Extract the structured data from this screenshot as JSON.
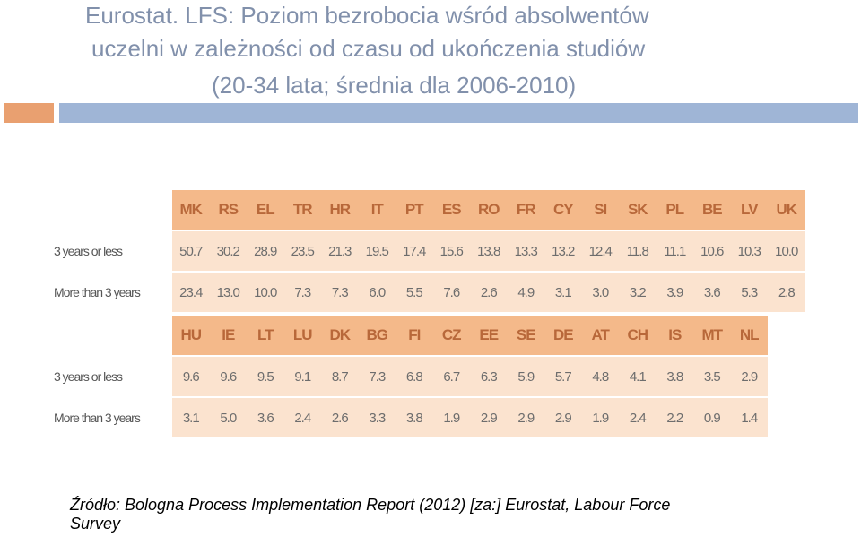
{
  "header": {
    "title_lines": [
      "Eurostat. LFS: Poziom bezrobocia wśród absolwentów",
      "uczelni w zależności od czasu od ukończenia studiów",
      "(20-34 lata; średnia dla 2006-2010)"
    ]
  },
  "table": {
    "blocks": [
      {
        "columns": [
          "MK",
          "RS",
          "EL",
          "TR",
          "HR",
          "IT",
          "PT",
          "ES",
          "RO",
          "FR",
          "CY",
          "SI",
          "SK",
          "PL",
          "BE",
          "LV",
          "UK"
        ],
        "rows": [
          {
            "label": "3 years or less",
            "values": [
              "50.7",
              "30.2",
              "28.9",
              "23.5",
              "21.3",
              "19.5",
              "17.4",
              "15.6",
              "13.8",
              "13.3",
              "13.2",
              "12.4",
              "11.8",
              "11.1",
              "10.6",
              "10.3",
              "10.0"
            ]
          },
          {
            "label": "More than 3 years",
            "values": [
              "23.4",
              "13.0",
              "10.0",
              "7.3",
              "7.3",
              "6.0",
              "5.5",
              "7.6",
              "2.6",
              "4.9",
              "3.1",
              "3.0",
              "3.2",
              "3.9",
              "3.6",
              "5.3",
              "2.8"
            ]
          }
        ]
      },
      {
        "columns": [
          "HU",
          "IE",
          "LT",
          "LU",
          "DK",
          "BG",
          "FI",
          "CZ",
          "EE",
          "SE",
          "DE",
          "AT",
          "CH",
          "IS",
          "MT",
          "NL"
        ],
        "rows": [
          {
            "label": "3 years or less",
            "values": [
              "9.6",
              "9.6",
              "9.5",
              "9.1",
              "8.7",
              "7.3",
              "6.8",
              "6.7",
              "6.3",
              "5.9",
              "5.7",
              "4.8",
              "4.1",
              "3.8",
              "3.5",
              "2.9"
            ]
          },
          {
            "label": "More than 3 years",
            "values": [
              "3.1",
              "5.0",
              "3.6",
              "2.4",
              "2.6",
              "3.3",
              "3.8",
              "1.9",
              "2.9",
              "2.9",
              "2.9",
              "1.9",
              "2.4",
              "2.2",
              "0.9",
              "1.4"
            ]
          }
        ]
      }
    ]
  },
  "source": {
    "lines": [
      "Źródło: Bologna Process Implementation Report (2012) [za:] Eurostat, Labour Force",
      "Survey"
    ]
  }
}
